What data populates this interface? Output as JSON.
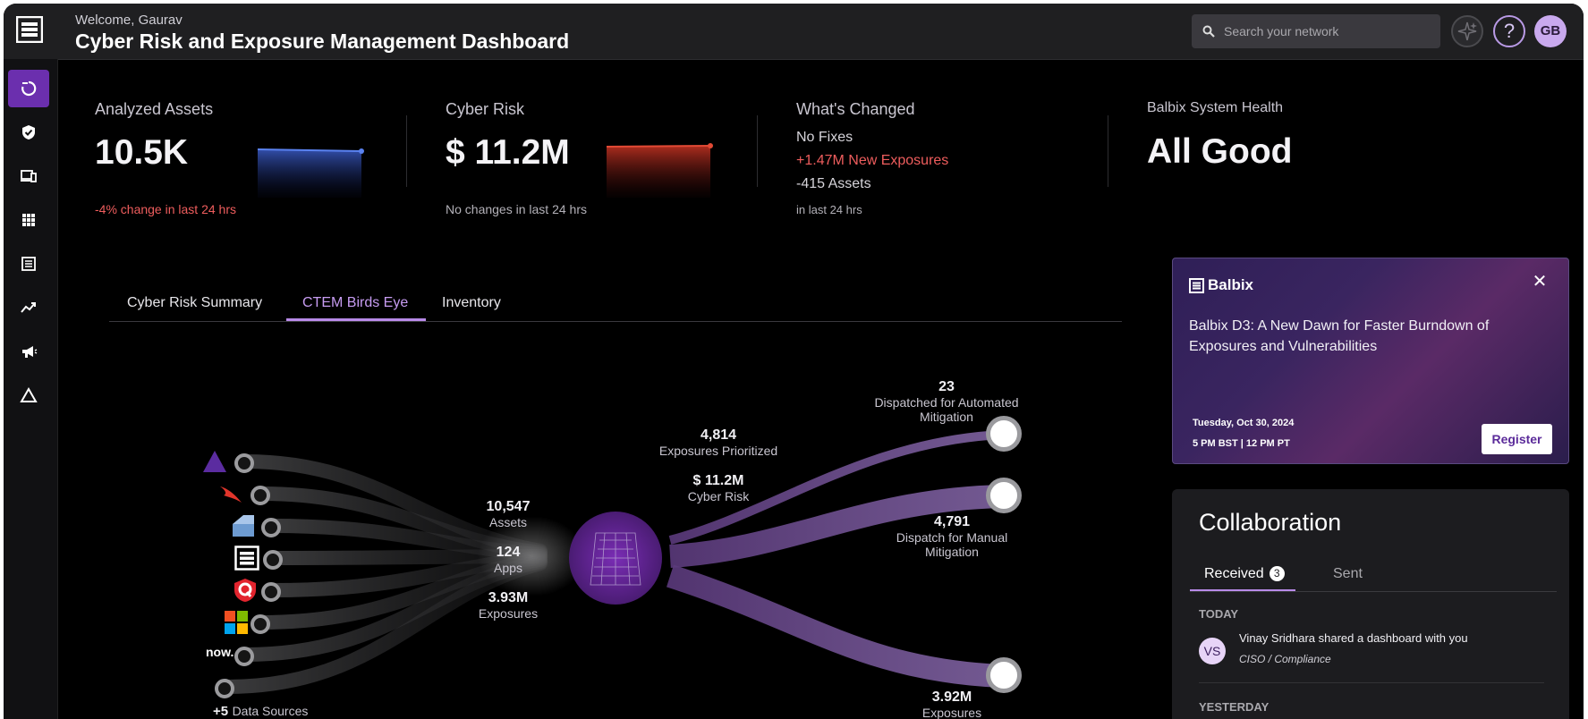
{
  "header": {
    "welcome": "Welcome, Gaurav",
    "title": "Cyber Risk and Exposure Management Dashboard",
    "search_placeholder": "Search your network",
    "help_icon": "?",
    "avatar_initials": "GB"
  },
  "sidebar": {
    "items": [
      {
        "icon": "dashboard-icon",
        "active": true
      },
      {
        "icon": "shield-icon",
        "active": false
      },
      {
        "icon": "devices-icon",
        "active": false
      },
      {
        "icon": "apps-grid-icon",
        "active": false
      },
      {
        "icon": "table-icon",
        "active": false
      },
      {
        "icon": "trend-icon",
        "active": false
      },
      {
        "icon": "megaphone-icon",
        "active": false
      },
      {
        "icon": "triangle-icon",
        "active": false
      }
    ]
  },
  "metrics": {
    "analyzed_assets": {
      "label": "Analyzed Assets",
      "value": "10.5K",
      "change": "-4% change in last 24 hrs"
    },
    "cyber_risk": {
      "label": "Cyber Risk",
      "value": "$ 11.2M",
      "change": "No changes in last 24 hrs"
    },
    "whats_changed": {
      "label": "What's Changed",
      "fixes": "No Fixes",
      "new_exposures": "+1.47M New Exposures",
      "assets": "-415 Assets",
      "period": "in last 24 hrs"
    },
    "system_health": {
      "label": "Balbix System Health",
      "value": "All Good"
    }
  },
  "tabs": [
    {
      "label": "Cyber Risk Summary",
      "active": false
    },
    {
      "label": "CTEM Birds Eye",
      "active": true
    },
    {
      "label": "Inventory",
      "active": false
    }
  ],
  "flow": {
    "assets_num": "10,547",
    "assets_label": "Assets",
    "apps_num": "124",
    "apps_label": "Apps",
    "exposures_num": "3.93M",
    "exposures_label": "Exposures",
    "prioritized_num": "4,814",
    "prioritized_label": "Exposures Prioritized",
    "risk_num": "$ 11.2M",
    "risk_label": "Cyber Risk",
    "automated_num": "23",
    "automated_label_1": "Dispatched for Automated",
    "automated_label_2": "Mitigation",
    "manual_num": "4,791",
    "manual_label_1": "Dispatch for Manual",
    "manual_label_2": "Mitigation",
    "remaining_num": "3.92M",
    "remaining_label": "Exposures",
    "more_sources_num": "+5",
    "more_sources_label": "Data Sources",
    "now_logo": "now.",
    "sources": [
      "azure-logo-icon",
      "crowdstrike-logo-icon",
      "tenable-logo-icon",
      "balbix-logo-icon",
      "qualys-logo-icon",
      "microsoft-logo-icon",
      "servicenow-logo-icon",
      "more-sources-icon"
    ]
  },
  "promo": {
    "brand": "Balbix",
    "headline": "Balbix D3: A New Dawn for Faster Burndown of Exposures and Vulnerabilities",
    "date": "Tuesday, Oct 30, 2024",
    "time": "5 PM BST | 12 PM PT",
    "register_label": "Register",
    "close_icon": "✕"
  },
  "collaboration": {
    "title": "Collaboration",
    "tab_received": "Received",
    "received_count": "3",
    "tab_sent": "Sent",
    "today_label": "TODAY",
    "notification": {
      "initials": "VS",
      "text": "Vinay Sridhara shared a dashboard with you",
      "sub": "CISO / Compliance"
    },
    "yesterday_label": "YESTERDAY"
  },
  "colors": {
    "accent": "#b88ae8",
    "active_nav": "#6b2fae",
    "negative": "#ee5d5d",
    "asset_line": "#4a6fd8",
    "risk_line": "#d9412f"
  }
}
